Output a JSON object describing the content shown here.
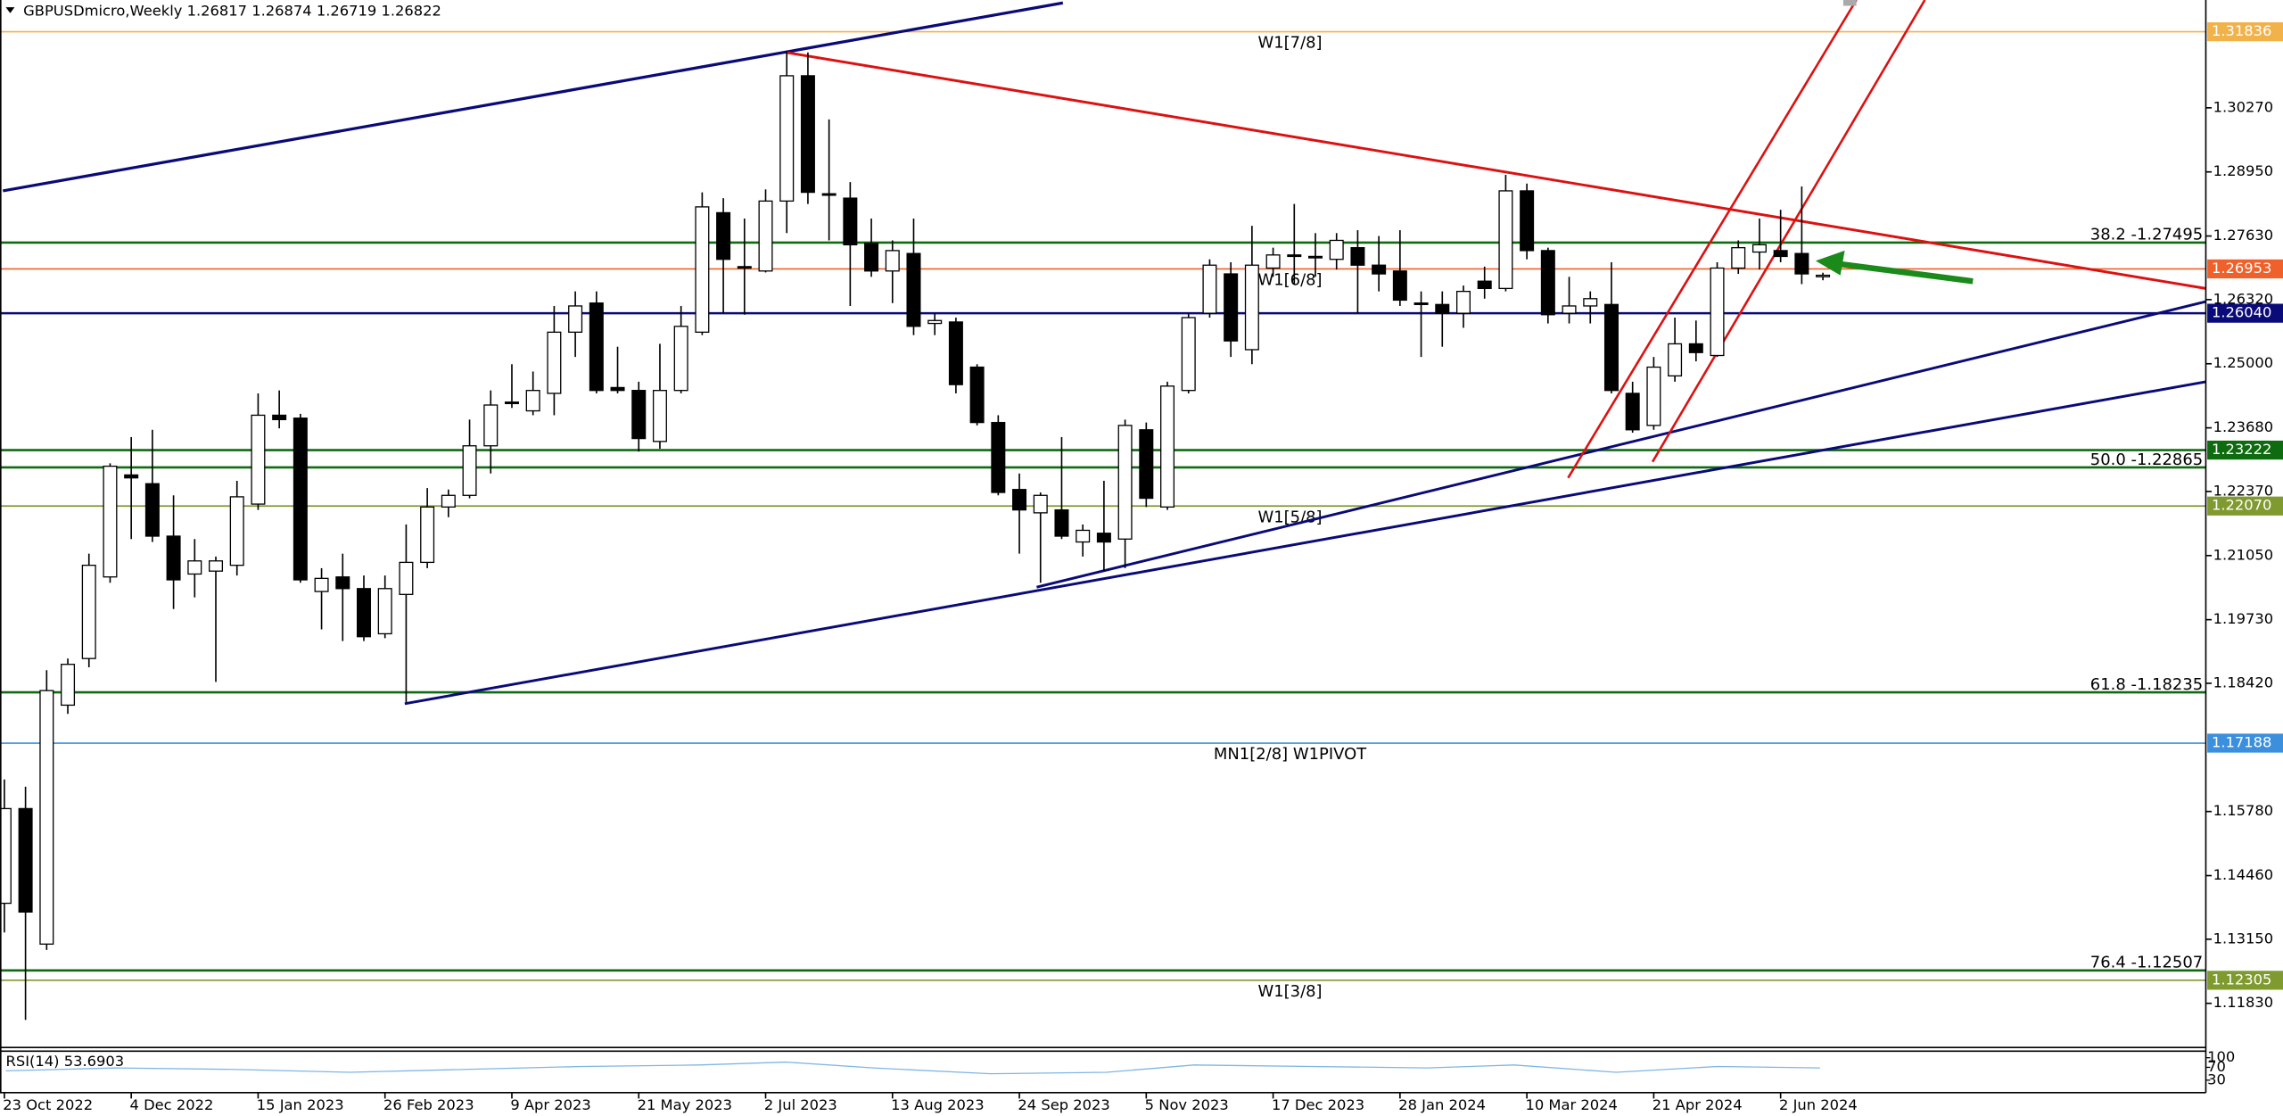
{
  "chart_data": {
    "type": "candlestick",
    "title": "GBPUSDmicro,Weekly  1.26817 1.26874 1.26719 1.26822",
    "bull_color": "#ffffff",
    "bear_color": "#000000",
    "categories": [
      "23 Oct 2022",
      null,
      null,
      null,
      null,
      null,
      "4 Dec 2022",
      null,
      null,
      null,
      null,
      null,
      "15 Jan 2023",
      null,
      null,
      null,
      null,
      null,
      "26 Feb 2023",
      null,
      null,
      null,
      null,
      null,
      "9 Apr 2023",
      null,
      null,
      null,
      null,
      null,
      "21 May 2023",
      null,
      null,
      null,
      null,
      null,
      "2 Jul 2023",
      null,
      null,
      null,
      null,
      null,
      "13 Aug 2023",
      null,
      null,
      null,
      null,
      null,
      "24 Sep 2023",
      null,
      null,
      null,
      null,
      null,
      "5 Nov 2023",
      null,
      null,
      null,
      null,
      null,
      "17 Dec 2023",
      null,
      null,
      null,
      null,
      null,
      "28 Jan 2024",
      null,
      null,
      null,
      null,
      null,
      "10 Mar 2024",
      null,
      null,
      null,
      null,
      null,
      "21 Apr 2024",
      null,
      null,
      null,
      null,
      null,
      "2 Jun 2024",
      null,
      null
    ],
    "open": [
      1.1389,
      1.1584,
      1.1305,
      1.1797,
      1.1893,
      1.2061,
      1.2271,
      1.2253,
      1.2145,
      1.2067,
      1.2073,
      1.2085,
      1.2211,
      1.2394,
      1.2388,
      1.2031,
      1.2061,
      1.2037,
      1.1944,
      1.2025,
      1.2091,
      1.2205,
      1.2229,
      1.2331,
      1.2421,
      1.2403,
      1.2439,
      1.2565,
      1.2625,
      1.2451,
      1.2445,
      1.234,
      1.2445,
      1.2565,
      1.2811,
      1.27,
      1.2691,
      1.2835,
      1.3093,
      1.285,
      1.2841,
      1.2748,
      1.2691,
      1.2727,
      1.2583,
      1.2586,
      1.2493,
      1.2379,
      1.2241,
      1.2193,
      1.2199,
      1.2133,
      1.2151,
      1.2139,
      1.2364,
      1.2205,
      1.2445,
      1.2604,
      1.2685,
      1.2529,
      1.2697,
      1.2724,
      1.2721,
      1.2715,
      1.2739,
      1.2703,
      1.2691,
      1.2625,
      1.2622,
      1.2604,
      1.267,
      1.2655,
      1.2856,
      1.2733,
      1.2604,
      1.2619,
      1.2622,
      1.2439,
      1.2373,
      1.2475,
      1.2541,
      1.2517,
      1.2697,
      1.273,
      1.2733,
      1.2727,
      1.26817
    ],
    "high": [
      1.1644,
      1.1629,
      1.1869,
      1.1893,
      1.2109,
      1.2295,
      1.2349,
      1.2364,
      1.2229,
      1.2139,
      1.2103,
      1.2259,
      1.2439,
      1.2445,
      1.2397,
      1.2079,
      1.2109,
      1.2064,
      1.2064,
      1.2169,
      1.2244,
      1.2241,
      1.2385,
      1.2445,
      1.2499,
      1.2484,
      1.2619,
      1.2649,
      1.2649,
      1.2535,
      1.2463,
      1.2541,
      1.2619,
      1.2853,
      1.2841,
      1.2799,
      1.2859,
      1.3144,
      1.3141,
      1.3003,
      1.2874,
      1.2799,
      1.2754,
      1.2799,
      1.2604,
      1.2595,
      1.2499,
      1.2394,
      1.2274,
      1.2235,
      1.2349,
      1.2169,
      1.2259,
      1.2385,
      1.2379,
      1.2463,
      1.2604,
      1.2715,
      1.2709,
      1.2784,
      1.2739,
      1.2829,
      1.2769,
      1.2769,
      1.2775,
      1.2763,
      1.2775,
      1.2649,
      1.2649,
      1.2661,
      1.27,
      1.2889,
      1.2871,
      1.2739,
      1.2679,
      1.2649,
      1.2709,
      1.2463,
      1.2514,
      1.2595,
      1.2589,
      1.2709,
      1.2754,
      1.2799,
      1.2817,
      1.2865,
      1.26874
    ],
    "low": [
      1.1329,
      1.1149,
      1.1293,
      1.1779,
      1.1875,
      1.2049,
      1.2139,
      1.2133,
      1.1995,
      1.2019,
      1.1845,
      1.2064,
      1.2199,
      1.2367,
      1.2049,
      1.1953,
      1.1929,
      1.1929,
      1.1935,
      1.1803,
      1.2079,
      1.2184,
      1.2223,
      1.2274,
      1.2409,
      1.2394,
      1.2394,
      1.2514,
      1.2439,
      1.2439,
      1.2319,
      1.2325,
      1.2439,
      1.2559,
      1.2604,
      1.2601,
      1.2688,
      1.2769,
      1.2829,
      1.2754,
      1.2619,
      1.2679,
      1.2625,
      1.2559,
      1.2559,
      1.2439,
      1.2373,
      1.2229,
      1.2109,
      1.2049,
      1.2139,
      1.2103,
      1.2073,
      1.2079,
      1.2205,
      1.2199,
      1.2439,
      1.2595,
      1.2514,
      1.2499,
      1.2679,
      1.2664,
      1.2679,
      1.2694,
      1.2604,
      1.2649,
      1.2619,
      1.2514,
      1.2535,
      1.2574,
      1.2634,
      1.2649,
      1.2715,
      1.2583,
      1.2583,
      1.2583,
      1.2439,
      1.2358,
      1.2364,
      1.2463,
      1.2505,
      1.2514,
      1.2685,
      1.2694,
      1.2709,
      1.2664,
      1.26719
    ],
    "close": [
      1.1584,
      1.1371,
      1.1827,
      1.1881,
      1.2085,
      1.2289,
      1.2265,
      1.2145,
      1.2055,
      1.2094,
      1.2094,
      1.2226,
      1.2394,
      1.2385,
      1.2055,
      1.2058,
      1.2037,
      1.1938,
      1.2037,
      1.2091,
      1.2205,
      1.2229,
      1.2331,
      1.2415,
      1.2418,
      1.2445,
      1.2565,
      1.2619,
      1.2445,
      1.2445,
      1.2346,
      1.2445,
      1.2577,
      1.2823,
      1.2715,
      1.2697,
      1.2835,
      1.3093,
      1.2853,
      1.2847,
      1.2745,
      1.2691,
      1.2733,
      1.2577,
      1.2589,
      1.2457,
      1.2379,
      1.2235,
      1.2199,
      1.2229,
      1.2145,
      1.2157,
      1.2133,
      1.2373,
      1.2223,
      1.2454,
      1.2595,
      1.2703,
      1.2547,
      1.2703,
      1.2724,
      1.2721,
      1.2718,
      1.2754,
      1.2703,
      1.2685,
      1.2631,
      1.2622,
      1.2604,
      1.2649,
      1.2655,
      1.2856,
      1.2733,
      1.2601,
      1.2619,
      1.2634,
      1.2445,
      1.2364,
      1.2493,
      1.2541,
      1.2523,
      1.2697,
      1.2739,
      1.2745,
      1.2721,
      1.2685,
      1.26822
    ],
    "ylim": [
      1.1095,
      1.3249
    ],
    "yticks": [
      {
        "value": 1.3027,
        "label": "1.30270"
      },
      {
        "value": 1.2895,
        "label": "1.28950"
      },
      {
        "value": 1.2763,
        "label": "1.27630"
      },
      {
        "value": 1.2632,
        "label": "1.26320"
      },
      {
        "value": 1.25,
        "label": "1.25000"
      },
      {
        "value": 1.2368,
        "label": "1.23680"
      },
      {
        "value": 1.2237,
        "label": "1.22370"
      },
      {
        "value": 1.2105,
        "label": "1.21050"
      },
      {
        "value": 1.1973,
        "label": "1.19730"
      },
      {
        "value": 1.1842,
        "label": "1.18420"
      },
      {
        "value": 1.1578,
        "label": "1.15780"
      },
      {
        "value": 1.1446,
        "label": "1.14460"
      },
      {
        "value": 1.1315,
        "label": "1.13150"
      },
      {
        "value": 1.1183,
        "label": "1.11830"
      }
    ],
    "grid": false,
    "levels": [
      {
        "value": 1.31836,
        "color": "#f2b24a",
        "text": "W1[7/8]",
        "text_at": "center",
        "tag": true
      },
      {
        "value": 1.27495,
        "color": "#0f6b0f",
        "text": "38.2 -1.27495",
        "text_at": "right",
        "tag": false
      },
      {
        "value": 1.26953,
        "color": "#f0602a",
        "text": "W1[6/8]",
        "text_at": "center",
        "tag": true
      },
      {
        "value": 1.2604,
        "color": "#0a0a78",
        "tag": true,
        "tag_label": "1.26040"
      },
      {
        "value": 1.23222,
        "color": "#0f6b0f",
        "tag": true
      },
      {
        "value": 1.22865,
        "color": "#0f6b0f",
        "text": "50.0 -1.22865",
        "text_at": "right",
        "tag": false
      },
      {
        "value": 1.2207,
        "color": "#7f9a2e",
        "text": "W1[5/8]",
        "text_at": "center",
        "tag": true,
        "tag_label": "1.22070"
      },
      {
        "value": 1.18235,
        "color": "#0f6b0f",
        "text": "61.8 -1.18235",
        "text_at": "right",
        "tag": false
      },
      {
        "value": 1.17188,
        "color": "#3b8fdc",
        "text": "MN1[2/8] W1PIVOT",
        "text_at": "center",
        "tag": true
      },
      {
        "value": 1.12507,
        "color": "#0f6b0f",
        "text": "76.4 -1.12507",
        "text_at": "right",
        "tag": false
      },
      {
        "value": 1.12305,
        "color": "#7f9a2e",
        "text": "W1[3/8]",
        "text_at": "center",
        "tag": true
      }
    ],
    "rsi": {
      "label": "RSI(14) 53.6903",
      "ylim": [
        0,
        100
      ],
      "yticks": [
        100,
        70,
        30
      ]
    }
  }
}
